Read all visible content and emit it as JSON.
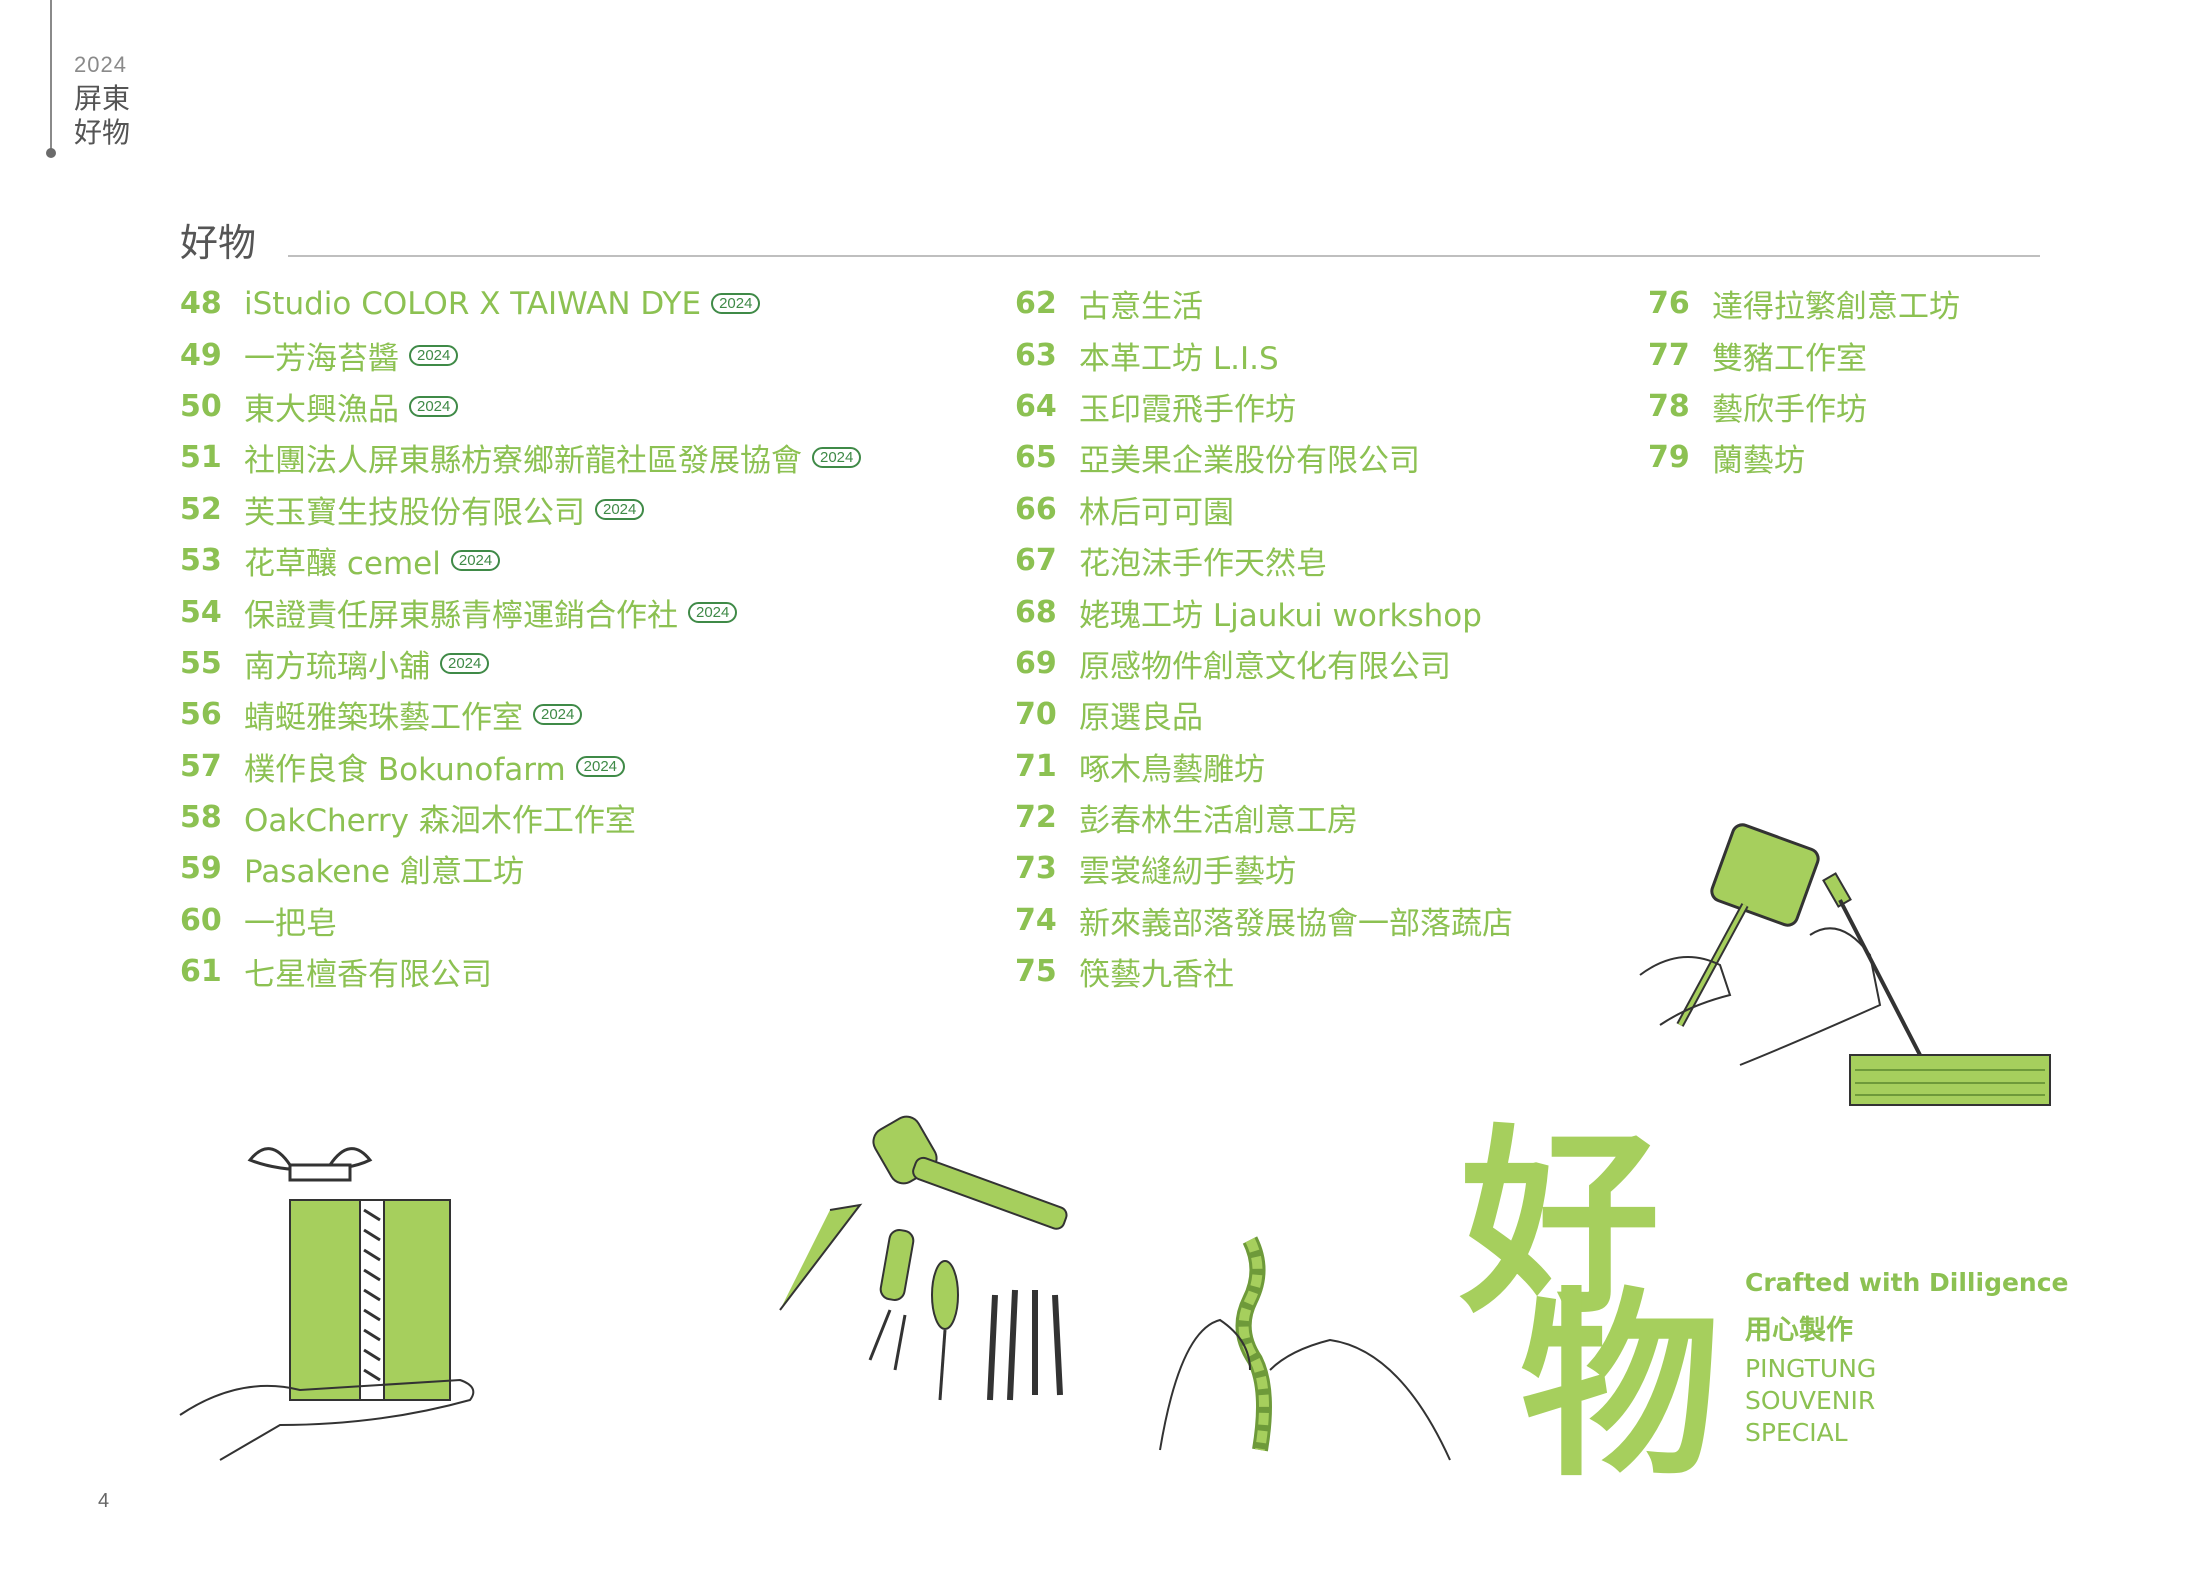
{
  "header": {
    "year": "2024",
    "title": "屏東好物"
  },
  "page_number": "4",
  "section": {
    "title": "好物"
  },
  "badge_label": "2024",
  "columns": [
    [
      {
        "num": "48",
        "name": "iStudio COLOR X TAIWAN DYE",
        "badge": "2024"
      },
      {
        "num": "49",
        "name": "一芳海苔醬",
        "badge": "2024"
      },
      {
        "num": "50",
        "name": "東大興漁品",
        "badge": "2024"
      },
      {
        "num": "51",
        "name": "社團法人屏東縣枋寮鄉新龍社區發展協會",
        "badge": "2024"
      },
      {
        "num": "52",
        "name": "芙玉寶生技股份有限公司",
        "badge": "2024"
      },
      {
        "num": "53",
        "name": "花草釀 cemel",
        "badge": "2024"
      },
      {
        "num": "54",
        "name": "保證責任屏東縣青檸運銷合作社",
        "badge": "2024"
      },
      {
        "num": "55",
        "name": "南方琉璃小舖",
        "badge": "2024"
      },
      {
        "num": "56",
        "name": "蜻蜓雅築珠藝工作室",
        "badge": "2024"
      },
      {
        "num": "57",
        "name": "樸作良食 Bokunofarm",
        "badge": "2024"
      },
      {
        "num": "58",
        "name": "OakCherry 森洄木作工作室",
        "badge": ""
      },
      {
        "num": "59",
        "name": "Pasakene 創意工坊",
        "badge": ""
      },
      {
        "num": "60",
        "name": "一把皂",
        "badge": ""
      },
      {
        "num": "61",
        "name": "七星檀香有限公司",
        "badge": ""
      }
    ],
    [
      {
        "num": "62",
        "name": "古意生活",
        "badge": ""
      },
      {
        "num": "63",
        "name": "本革工坊 L.I.S",
        "badge": ""
      },
      {
        "num": "64",
        "name": "玉印霞飛手作坊",
        "badge": ""
      },
      {
        "num": "65",
        "name": "亞美果企業股份有限公司",
        "badge": ""
      },
      {
        "num": "66",
        "name": "林后可可園",
        "badge": ""
      },
      {
        "num": "67",
        "name": "花泡沫手作天然皂",
        "badge": ""
      },
      {
        "num": "68",
        "name": "姥瑰工坊 Ljaukui workshop",
        "badge": ""
      },
      {
        "num": "69",
        "name": "原感物件創意文化有限公司",
        "badge": ""
      },
      {
        "num": "70",
        "name": "原選良品",
        "badge": ""
      },
      {
        "num": "71",
        "name": "啄木鳥藝雕坊",
        "badge": ""
      },
      {
        "num": "72",
        "name": "彭春林生活創意工房",
        "badge": ""
      },
      {
        "num": "73",
        "name": "雲裳縫紉手藝坊",
        "badge": ""
      },
      {
        "num": "74",
        "name": "新來義部落發展協會一部落蔬店",
        "badge": ""
      },
      {
        "num": "75",
        "name": "筷藝九香社",
        "badge": ""
      }
    ],
    [
      {
        "num": "76",
        "name": "達得拉繁創意工坊",
        "badge": ""
      },
      {
        "num": "77",
        "name": "雙豬工作室",
        "badge": ""
      },
      {
        "num": "78",
        "name": "藝欣手作坊",
        "badge": ""
      },
      {
        "num": "79",
        "name": "蘭藝坊",
        "badge": ""
      }
    ]
  ],
  "feature": {
    "big_char_1": "好",
    "big_char_2": "物",
    "tagline_en": "Crafted with Dilligence",
    "tagline_zh": "用心製作",
    "subtitle": "PINGTUNG SOUVENIR SPECIAL"
  },
  "colors": {
    "accent": "#8cc152",
    "badge": "#3f8a47",
    "illustration": "#a6cf5d"
  }
}
